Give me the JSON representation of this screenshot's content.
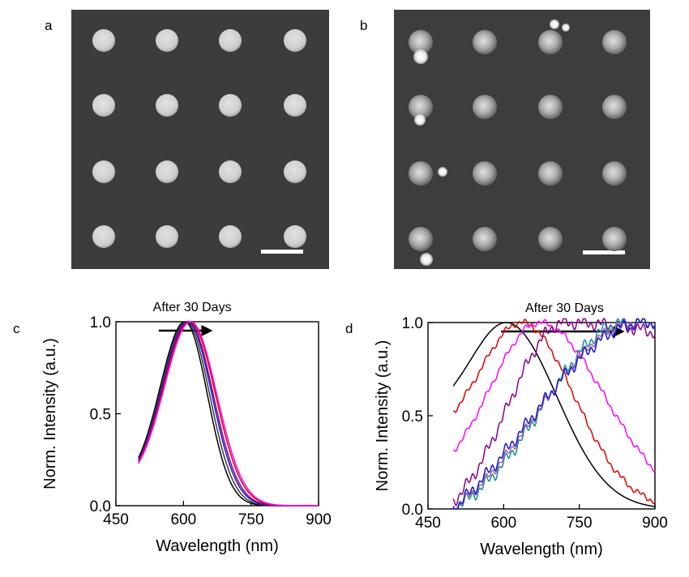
{
  "panels": {
    "a": "a",
    "b": "b",
    "c": "c",
    "d": "d"
  },
  "sem_images": [
    {
      "panel": "a",
      "description": "uniform 4x4 array of bright nanodisks, dark gray background, white scale bar",
      "rows": 4,
      "cols": 4,
      "background": "#3c3c3c",
      "dot_color": "#cfcfcf",
      "speckled": false
    },
    {
      "panel": "b",
      "description": "4x4 array of speckled nanodisks with bright debris, white scale bar",
      "rows": 4,
      "cols": 4,
      "background": "#3d3d3d",
      "dot_color": "#bdbdbd",
      "speckled": true
    }
  ],
  "chart_data": [
    {
      "type": "line",
      "panel": "c",
      "title": "After 30 Days",
      "xlabel": "Wavelength (nm)",
      "ylabel": "Norm. Intensity (a.u.)",
      "xlim": [
        450,
        900
      ],
      "ylim": [
        0.0,
        1.0
      ],
      "xticks": [
        450,
        600,
        750,
        900
      ],
      "yticks": [
        "0.0",
        "0.5",
        "1.0"
      ],
      "arrow": {
        "from_x": 545,
        "to_x": 665,
        "y": 1.0
      },
      "series": [
        {
          "color": "#000000",
          "peak": 603,
          "start": 0.26,
          "sigmaL": 54,
          "sigmaR": 50,
          "tail": 0.0
        },
        {
          "color": "#3a3a3a",
          "peak": 606,
          "start": 0.25,
          "sigmaL": 55,
          "sigmaR": 52,
          "tail": 0.0
        },
        {
          "color": "#1a1ad0",
          "peak": 609,
          "start": 0.25,
          "sigmaL": 55,
          "sigmaR": 54,
          "tail": 0.0
        },
        {
          "color": "#8a008a",
          "peak": 611,
          "start": 0.24,
          "sigmaL": 56,
          "sigmaR": 55,
          "tail": 0.0
        },
        {
          "color": "#e00000",
          "peak": 614,
          "start": 0.24,
          "sigmaL": 57,
          "sigmaR": 57,
          "tail": 0.0
        },
        {
          "color": "#ff00ff",
          "peak": 616,
          "start": 0.23,
          "sigmaL": 58,
          "sigmaR": 58,
          "tail": 0.0
        }
      ]
    },
    {
      "type": "line",
      "panel": "d",
      "title": "After 30 Days",
      "xlabel": "Wavelength (nm)",
      "ylabel": "Norm. Intensity (a.u.)",
      "xlim": [
        450,
        900
      ],
      "ylim": [
        0.0,
        1.0
      ],
      "xticks": [
        450,
        600,
        750,
        900
      ],
      "yticks": [
        "0.0",
        "0.5",
        "1.0"
      ],
      "arrow": {
        "from_x": 595,
        "to_x": 840,
        "y": 1.0
      },
      "series": [
        {
          "color": "#000000",
          "peak": 605,
          "start": 0.66,
          "sigmaL": 70,
          "sigmaR": 100,
          "tail": 0.0,
          "noise": 0.0
        },
        {
          "color": "#e00000",
          "peak": 635,
          "start": 0.52,
          "sigmaL": 80,
          "sigmaR": 105,
          "tail": 0.0,
          "noise": 0.02
        },
        {
          "color": "#ff00ff",
          "peak": 670,
          "start": 0.31,
          "sigmaL": 95,
          "sigmaR": 130,
          "tail": 0.0,
          "noise": 0.02
        },
        {
          "color": "#8a008a",
          "peak": 720,
          "start": 0.04,
          "sigmaL": 110,
          "sigmaR": 400,
          "tail": 0.45,
          "noise": 0.04
        },
        {
          "color": "#1a9090",
          "peak": 840,
          "start": 0.0,
          "sigmaL": 160,
          "sigmaR": 600,
          "tail": 0.85,
          "noise": 0.04
        },
        {
          "color": "#b060b0",
          "peak": 860,
          "start": 0.0,
          "sigmaL": 190,
          "sigmaR": 600,
          "tail": 0.85,
          "noise": 0.03
        },
        {
          "color": "#1a1ad0",
          "peak": 880,
          "start": 0.0,
          "sigmaL": 230,
          "sigmaR": 600,
          "tail": 0.6,
          "noise": 0.04
        }
      ]
    }
  ]
}
